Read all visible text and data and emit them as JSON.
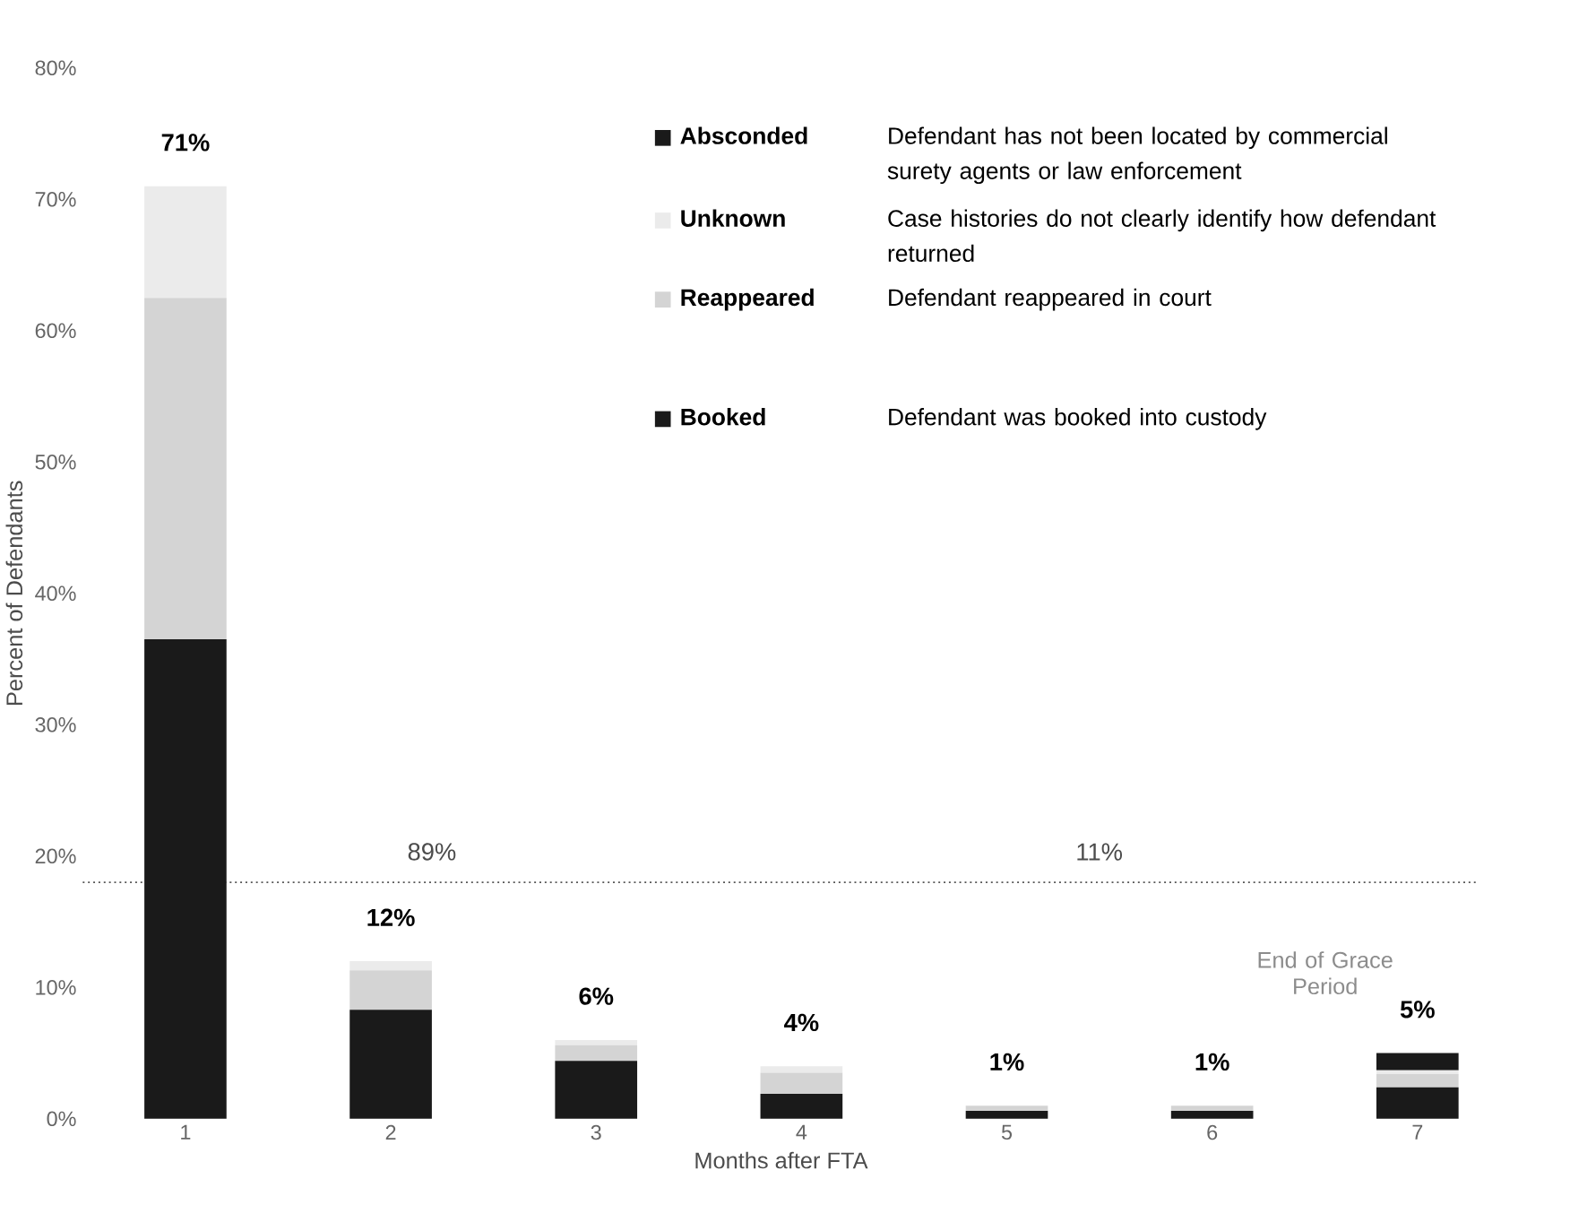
{
  "chart_data": {
    "type": "bar",
    "stacked": true,
    "xlabel": "Months after FTA",
    "ylabel": "Percent of Defendants",
    "categories": [
      "1",
      "2",
      "3",
      "4",
      "5",
      "6",
      "7"
    ],
    "series": [
      {
        "name": "Booked",
        "color": "#1a1a1a",
        "values": [
          36.5,
          8.3,
          4.4,
          1.9,
          0.6,
          0.6,
          2.4
        ]
      },
      {
        "name": "Reappeared",
        "color": "#d4d4d4",
        "values": [
          26,
          3,
          1.2,
          1.6,
          0.4,
          0.4,
          1.0
        ]
      },
      {
        "name": "Unknown",
        "color": "#ebebeb",
        "values": [
          8.5,
          0.7,
          0.4,
          0.5,
          null,
          null,
          0.3
        ]
      },
      {
        "name": "Absconded",
        "color": "#1a1a1a",
        "values": [
          0,
          0,
          0,
          0,
          0,
          0,
          1.3
        ]
      }
    ],
    "totals": [
      "71%",
      "12%",
      "6%",
      "4%",
      "1%",
      "1%",
      "5%"
    ],
    "ylim": [
      0,
      80
    ],
    "yticks": [
      {
        "value": 0,
        "label": "0%"
      },
      {
        "value": 10,
        "label": "10%"
      },
      {
        "value": 20,
        "label": "20%"
      },
      {
        "value": 30,
        "label": "30%"
      },
      {
        "value": 40,
        "label": "40%"
      },
      {
        "value": 50,
        "label": "50%"
      },
      {
        "value": 60,
        "label": "60%"
      },
      {
        "value": 70,
        "label": "70%"
      },
      {
        "value": 80,
        "label": "80%"
      }
    ],
    "ref_lines": [
      {
        "axis": "y",
        "value": 18,
        "color": "#555555",
        "line_style": "dotted"
      }
    ],
    "annotations": [
      "Defendant has not been located by commercial surety agents or law enforcement",
      "Case histories do not clearly identify how defendant returned",
      "Defendant reappeared in court",
      "Defendant was booked into custody",
      "89%",
      "11%",
      "End of Grace Period"
    ],
    "legend": "top right",
    "grid": false
  }
}
